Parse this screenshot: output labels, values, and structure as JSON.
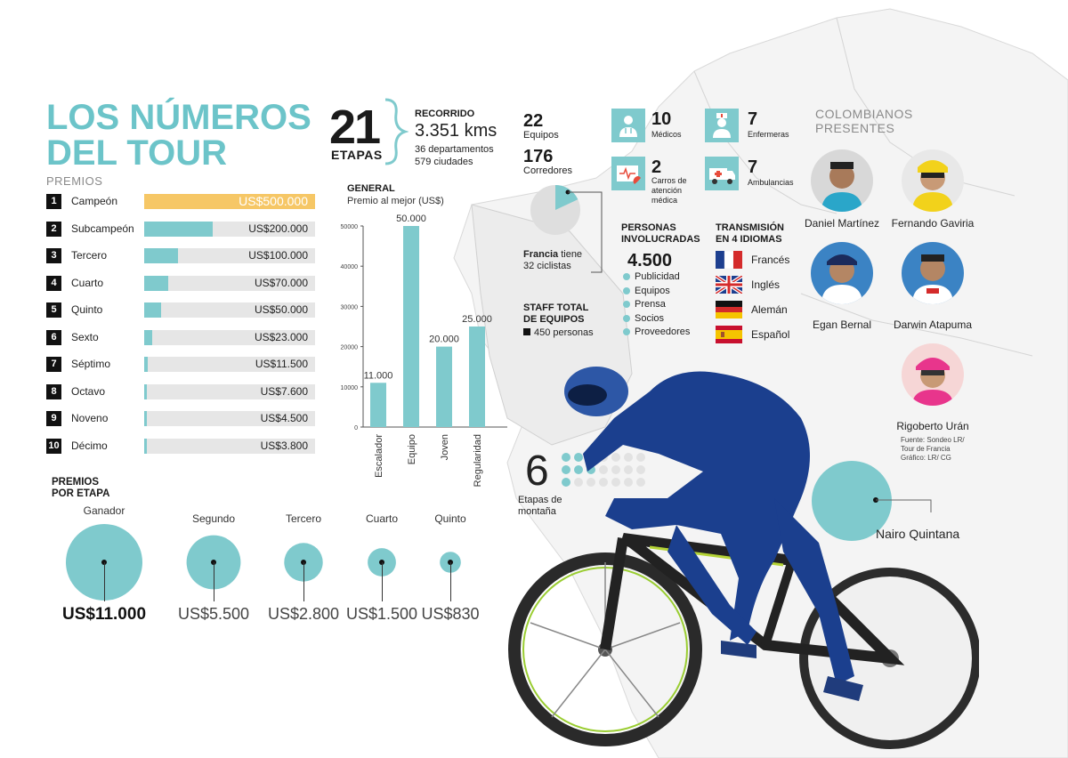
{
  "title": "LOS NÚMEROS DEL TOUR",
  "premios_label": "PREMIOS",
  "prizes": [
    {
      "rank": "1",
      "label": "Campeón",
      "value_text": "US$500.000",
      "value": 500000
    },
    {
      "rank": "2",
      "label": "Subcampeón",
      "value_text": "US$200.000",
      "value": 200000
    },
    {
      "rank": "3",
      "label": "Tercero",
      "value_text": "US$100.000",
      "value": 100000
    },
    {
      "rank": "4",
      "label": "Cuarto",
      "value_text": "US$70.000",
      "value": 70000
    },
    {
      "rank": "5",
      "label": "Quinto",
      "value_text": "US$50.000",
      "value": 50000
    },
    {
      "rank": "6",
      "label": "Sexto",
      "value_text": "US$23.000",
      "value": 23000
    },
    {
      "rank": "7",
      "label": "Séptimo",
      "value_text": "US$11.500",
      "value": 11500
    },
    {
      "rank": "8",
      "label": "Octavo",
      "value_text": "US$7.600",
      "value": 7600
    },
    {
      "rank": "9",
      "label": "Noveno",
      "value_text": "US$4.500",
      "value": 4500
    },
    {
      "rank": "10",
      "label": "Décimo",
      "value_text": "US$3.800",
      "value": 3800
    }
  ],
  "stage_prizes": {
    "title_line1": "PREMIOS",
    "title_line2": "POR ETAPA",
    "items": [
      {
        "label": "Ganador",
        "value_text": "US$11.000",
        "value": 11000
      },
      {
        "label": "Segundo",
        "value_text": "US$5.500",
        "value": 5500
      },
      {
        "label": "Tercero",
        "value_text": "US$2.800",
        "value": 2800
      },
      {
        "label": "Cuarto",
        "value_text": "US$1.500",
        "value": 1500
      },
      {
        "label": "Quinto",
        "value_text": "US$830",
        "value": 830
      }
    ]
  },
  "stages": {
    "number": "21",
    "word": "ETAPAS"
  },
  "route": {
    "head": "RECORRIDO",
    "km": "3.351 kms",
    "departments": "36 departamentos",
    "cities": "579 ciudades"
  },
  "teams": {
    "number": "22",
    "label": "Equipos"
  },
  "riders": {
    "number": "176",
    "label": "Corredores"
  },
  "france": {
    "bold": "Francia",
    "rest": " tiene",
    "line2": "32 ciclistas",
    "share": 0.18
  },
  "staff_stats": [
    {
      "number": "10",
      "label": "Médicos",
      "icon": "doctor-icon"
    },
    {
      "number": "7",
      "label": "Enfermeras",
      "icon": "nurse-icon"
    },
    {
      "number": "2",
      "label": "Carros de atención médica",
      "icon": "medical-car-icon"
    },
    {
      "number": "7",
      "label": "Ambulancias",
      "icon": "ambulance-icon"
    }
  ],
  "people": {
    "head_line1": "PERSONAS",
    "head_line2": "INVOLUCRADAS",
    "number": "4.500",
    "items": [
      "Publicidad",
      "Equipos",
      "Prensa",
      "Socios",
      "Proveedores"
    ]
  },
  "languages": {
    "head_line1": "TRANSMISIÓN",
    "head_line2": "EN 4 IDIOMAS",
    "items": [
      "Francés",
      "Inglés",
      "Alemán",
      "Español"
    ]
  },
  "staff_total": {
    "head_line1": "STAFF TOTAL",
    "head_line2": "DE EQUIPOS",
    "value": "450 personas"
  },
  "mountain": {
    "number": "6",
    "line1": "Etapas de",
    "line2": "montaña",
    "count": 6,
    "total": 21
  },
  "colombians": {
    "head_line1": "COLOMBIANOS",
    "head_line2": "PRESENTES",
    "riders": [
      "Daniel Martínez",
      "Fernando Gaviria",
      "Egan Bernal",
      "Darwin Atapuma",
      "Rigoberto Urán"
    ]
  },
  "source": {
    "line1": "Fuente: Sondeo LR/",
    "line2": "Tour de Francia",
    "line3": "Gráfico: LR/ CG"
  },
  "featured_rider": "Nairo Quintana",
  "colors": {
    "accent": "#7fcacd",
    "gold": "#f6c766",
    "track": "#e6e6e6",
    "text": "#1a1a1a"
  },
  "chart_data": {
    "type": "bar",
    "title": "GENERAL",
    "subtitle": "Premio al mejor (US$)",
    "categories": [
      "Escalador",
      "Equipo",
      "Joven",
      "Regularidad"
    ],
    "values": [
      11000,
      50000,
      20000,
      25000
    ],
    "value_labels": [
      "11.000",
      "50.000",
      "20.000",
      "25.000"
    ],
    "yticks": [
      0,
      10000,
      20000,
      30000,
      40000,
      50000
    ],
    "ylim": [
      0,
      50000
    ],
    "grid": false
  }
}
